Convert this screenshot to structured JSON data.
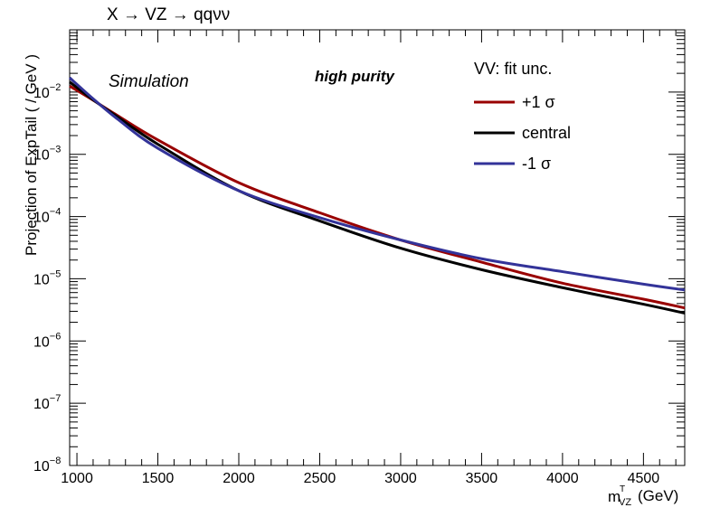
{
  "chart_data": {
    "type": "line",
    "title": "X → VZ → qqνν",
    "xlabel_main": "m",
    "xlabel_sup": "T",
    "xlabel_sub": "VZ",
    "xlabel_unit": "(GeV)",
    "ylabel": "Projection of ExpTail ( / GeV )",
    "x_scale": "linear",
    "y_scale": "log",
    "xlim": [
      955,
      4755
    ],
    "ylim": [
      1e-08,
      0.1
    ],
    "x_ticks": [
      1000,
      1500,
      2000,
      2500,
      3000,
      3500,
      4000,
      4500
    ],
    "y_tick_labels": [
      {
        "value": 1e-08,
        "base": "10",
        "exp": "−8"
      },
      {
        "value": 1e-07,
        "base": "10",
        "exp": "−7"
      },
      {
        "value": 1e-06,
        "base": "10",
        "exp": "−6"
      },
      {
        "value": 1e-05,
        "base": "10",
        "exp": "−5"
      },
      {
        "value": 0.0001,
        "base": "10",
        "exp": "−4"
      },
      {
        "value": 0.001,
        "base": "10",
        "exp": "−3"
      },
      {
        "value": 0.01,
        "base": "10",
        "exp": "−2"
      }
    ],
    "annotations": {
      "simulation": "Simulation",
      "purity": "high purity"
    },
    "legend": {
      "title": "VV: fit unc.",
      "position": "top-right",
      "entries": [
        {
          "label": "+1 σ",
          "color": "#990000"
        },
        {
          "label": "central",
          "color": "#000000"
        },
        {
          "label": "-1 σ",
          "color": "#333399"
        }
      ]
    },
    "series": [
      {
        "color": "#990000",
        "x": [
          955,
          1100,
          1250,
          1500,
          2000,
          2500,
          3000,
          3500,
          4000,
          4500,
          4755
        ],
        "y": [
          0.0125,
          0.0074,
          0.0042,
          0.0017,
          0.00035,
          0.000115,
          4.2e-05,
          1.85e-05,
          8.5e-06,
          4.7e-06,
          3.4e-06
        ]
      },
      {
        "color": "#000000",
        "x": [
          955,
          1100,
          1250,
          1500,
          2000,
          2500,
          3000,
          3500,
          4000,
          4500,
          4755
        ],
        "y": [
          0.0145,
          0.0075,
          0.004,
          0.00145,
          0.00026,
          8.5e-05,
          3.1e-05,
          1.4e-05,
          7.2e-06,
          3.9e-06,
          2.8e-06
        ]
      },
      {
        "color": "#333399",
        "x": [
          955,
          1100,
          1250,
          1500,
          2000,
          2500,
          3000,
          3500,
          4000,
          4500,
          4755
        ],
        "y": [
          0.017,
          0.0078,
          0.0037,
          0.00125,
          0.00026,
          9.6e-05,
          4.2e-05,
          2.1e-05,
          1.3e-05,
          8.2e-06,
          6.6e-06
        ]
      }
    ]
  }
}
